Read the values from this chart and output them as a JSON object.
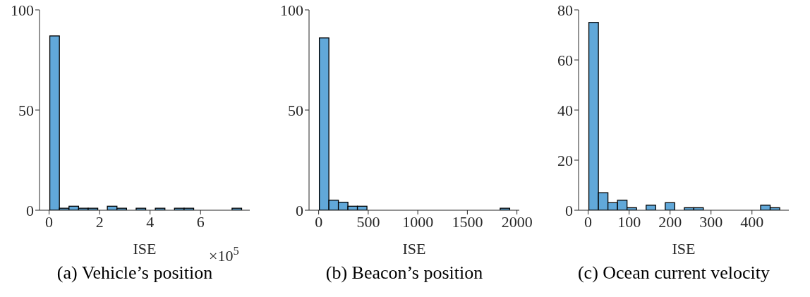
{
  "chart_data": [
    {
      "type": "histogram",
      "title": "(a) Vehicle’s position",
      "xlabel": "ISE",
      "annotations": [
        "×10$^{5}$"
      ],
      "color": "#61a8d9",
      "bins": [
        0,
        0.38,
        0.76,
        1.14,
        1.52,
        1.9,
        2.28,
        2.66,
        3.04,
        3.42,
        3.8,
        4.18,
        4.56,
        4.94,
        5.32,
        5.7,
        6.08,
        6.46,
        6.84,
        7.22,
        7.6
      ],
      "values": [
        87,
        1,
        2,
        1,
        1,
        0,
        2,
        1,
        0,
        1,
        0,
        1,
        0,
        1,
        1,
        0,
        0,
        0,
        0,
        1
      ],
      "xlim": [
        -0.38,
        7.95
      ],
      "xticks": [
        0,
        2,
        4,
        6
      ],
      "ylim": [
        0,
        100
      ],
      "yticks": [
        0,
        50,
        100
      ],
      "grid": false
    },
    {
      "type": "histogram",
      "title": "(b) Beacon’s position",
      "xlabel": "ISE",
      "color": "#61a8d9",
      "bins": [
        0,
        96,
        192,
        288,
        384,
        480,
        576,
        672,
        768,
        864,
        960,
        1056,
        1152,
        1248,
        1344,
        1440,
        1536,
        1632,
        1728,
        1824,
        1920
      ],
      "values": [
        86,
        5,
        4,
        2,
        2,
        0,
        0,
        0,
        0,
        0,
        0,
        0,
        0,
        0,
        0,
        0,
        0,
        0,
        0,
        1
      ],
      "xlim": [
        -97,
        2024
      ],
      "xticks": [
        0,
        500,
        1000,
        1500,
        2000
      ],
      "ylim": [
        0,
        100
      ],
      "yticks": [
        0,
        50,
        100
      ],
      "grid": false
    },
    {
      "type": "histogram",
      "title": "(c) Ocean current velocity",
      "xlabel": "ISE",
      "color": "#61a8d9",
      "bins": [
        0,
        23.3,
        46.6,
        69.9,
        93.2,
        116.5,
        139.8,
        163.1,
        186.4,
        209.7,
        233,
        256.3,
        279.6,
        302.9,
        326.2,
        349.5,
        372.8,
        396.1,
        419.4,
        442.7,
        466
      ],
      "values": [
        75,
        7,
        3,
        4,
        1,
        0,
        2,
        0,
        3,
        0,
        1,
        1,
        0,
        0,
        0,
        0,
        0,
        0,
        2,
        1
      ],
      "xlim": [
        -23.4,
        490
      ],
      "xticks": [
        0,
        100,
        200,
        300,
        400
      ],
      "ylim": [
        0,
        80
      ],
      "yticks": [
        0,
        20,
        40,
        60,
        80
      ],
      "grid": false
    }
  ]
}
